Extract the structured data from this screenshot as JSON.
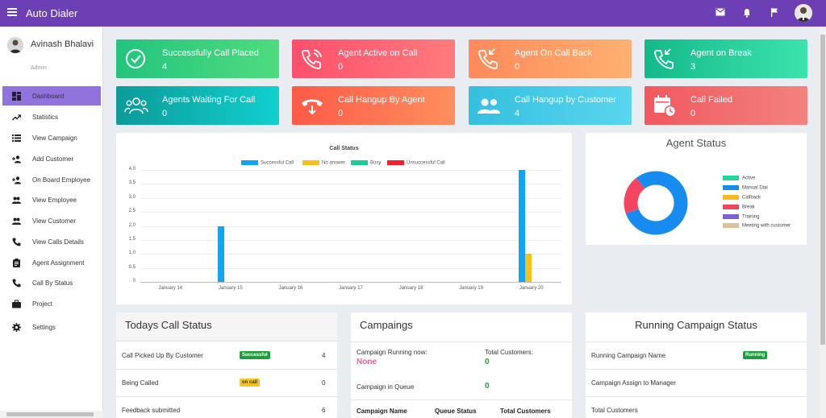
{
  "app": {
    "title": "Auto Dialer"
  },
  "topbar": {
    "icons": [
      "mail-icon",
      "bell-icon",
      "flag-icon"
    ]
  },
  "user": {
    "name": "Avinash Bhalavi",
    "role": "Admin"
  },
  "sidebar": {
    "items": [
      {
        "label": "Dashboard",
        "icon": "dashboard-icon",
        "active": true
      },
      {
        "label": "Statistics",
        "icon": "trending-up-icon"
      },
      {
        "label": "View Campaign",
        "icon": "list-icon"
      },
      {
        "label": "Add Customer",
        "icon": "person-add-icon"
      },
      {
        "label": "On Board Employee",
        "icon": "person-add-icon"
      },
      {
        "label": "View Employee",
        "icon": "people-icon"
      },
      {
        "label": "View Customer",
        "icon": "people-icon"
      },
      {
        "label": "View Calls Details",
        "icon": "phone-icon"
      },
      {
        "label": "Agent Assignment",
        "icon": "assignment-icon"
      },
      {
        "label": "Call By Status",
        "icon": "phone-icon"
      },
      {
        "label": "Project",
        "icon": "briefcase-icon"
      },
      {
        "label": "Settings",
        "icon": "gear-icon"
      }
    ]
  },
  "cards": [
    {
      "title": "Successfully Call Placed",
      "value": "4",
      "icon": "check-circle-icon",
      "colors": [
        "#23c47e",
        "#4fdc7e"
      ]
    },
    {
      "title": "Agent Active on Call",
      "value": "0",
      "icon": "phone-ringing-icon",
      "colors": [
        "#ff4f6d",
        "#ff7b7b"
      ]
    },
    {
      "title": "Agent On Call Back",
      "value": "0",
      "icon": "phone-callback-icon",
      "colors": [
        "#ff8a5b",
        "#ffb070"
      ]
    },
    {
      "title": "Agent on Break",
      "value": "3",
      "icon": "phone-callback-icon",
      "colors": [
        "#14b98a",
        "#3de3ad"
      ]
    },
    {
      "title": "Agents Waiting For Call",
      "value": "0",
      "icon": "people-outline-icon",
      "colors": [
        "#0c9b98",
        "#11d0cf"
      ]
    },
    {
      "title": "Call Hangup By Agent",
      "value": "0",
      "icon": "phone-hangup-icon",
      "colors": [
        "#ff5a46",
        "#ff8e5e"
      ]
    },
    {
      "title": "Call Hangup by Customer",
      "value": "4",
      "icon": "people-icon",
      "colors": [
        "#35bfe0",
        "#5ad6ee"
      ]
    },
    {
      "title": "Call Failed",
      "value": "0",
      "icon": "calendar-clock-icon",
      "colors": [
        "#f0585e",
        "#f3827f"
      ]
    }
  ],
  "chart_data": [
    {
      "type": "bar",
      "title": "Call Status",
      "categories": [
        "January 14",
        "January 15",
        "January 16",
        "January 17",
        "January 18",
        "January 19",
        "January 20"
      ],
      "ylim": [
        0,
        4
      ],
      "yticks": [
        "0",
        "0.5",
        "1.0",
        "1.5",
        "2.0",
        "2.5",
        "3.0",
        "3.5",
        "4.0"
      ],
      "series": [
        {
          "name": "Successful Call",
          "color": "#12a4f5",
          "values": [
            0,
            2,
            0,
            0,
            0,
            0,
            4
          ]
        },
        {
          "name": "No answer",
          "color": "#fbbf1c",
          "values": [
            0,
            0,
            0,
            0,
            0,
            0,
            1
          ]
        },
        {
          "name": "Busy",
          "color": "#1ec99b",
          "values": [
            0,
            0,
            0,
            0,
            0,
            0,
            0
          ]
        },
        {
          "name": "Unsuccessful Call",
          "color": "#f3212e",
          "values": [
            0,
            0,
            0,
            0,
            0,
            0,
            0
          ]
        }
      ],
      "legend": "top"
    },
    {
      "type": "pie",
      "title": "Agent Status",
      "donut": true,
      "series": [
        {
          "name": "Active",
          "color": "#1fd69f",
          "value": 0
        },
        {
          "name": "Manual Dial",
          "color": "#168cf0",
          "value": 0.8
        },
        {
          "name": "Callback",
          "color": "#fbb91d",
          "value": 0
        },
        {
          "name": "Break",
          "color": "#f44560",
          "value": 0.2
        },
        {
          "name": "Training",
          "color": "#7c60d1",
          "value": 0
        },
        {
          "name": "Meeting with customer",
          "color": "#dcc09a",
          "value": 0
        }
      ],
      "legend": "right"
    }
  ],
  "today": {
    "title": "Todays Call Status",
    "rows": [
      {
        "label": "Call Picked Up By Customer",
        "badge": "Successful",
        "badge_color": "#1f9d3d",
        "value": "4"
      },
      {
        "label": "Being Called",
        "badge": "on call",
        "badge_color": "#f7c51a",
        "value": "0"
      },
      {
        "label": "Feedback submitted",
        "badge": "",
        "value": "6"
      }
    ]
  },
  "campaigns": {
    "title": "Campaings",
    "running_label": "Campaign Running now:",
    "running_value": "None",
    "total_label": "Total Customers:",
    "total_value": "0",
    "queue_label": "Campaign in Queue",
    "queue_value": "0",
    "columns": [
      "Campaign Name",
      "Queue Status",
      "Total Customers"
    ]
  },
  "running": {
    "title": "Running Campaign Status",
    "rows": [
      {
        "label": "Running Campaign Name",
        "badge": "Running"
      },
      {
        "label": "Campaign Assign to Manager"
      },
      {
        "label": "Total Customers"
      }
    ]
  }
}
